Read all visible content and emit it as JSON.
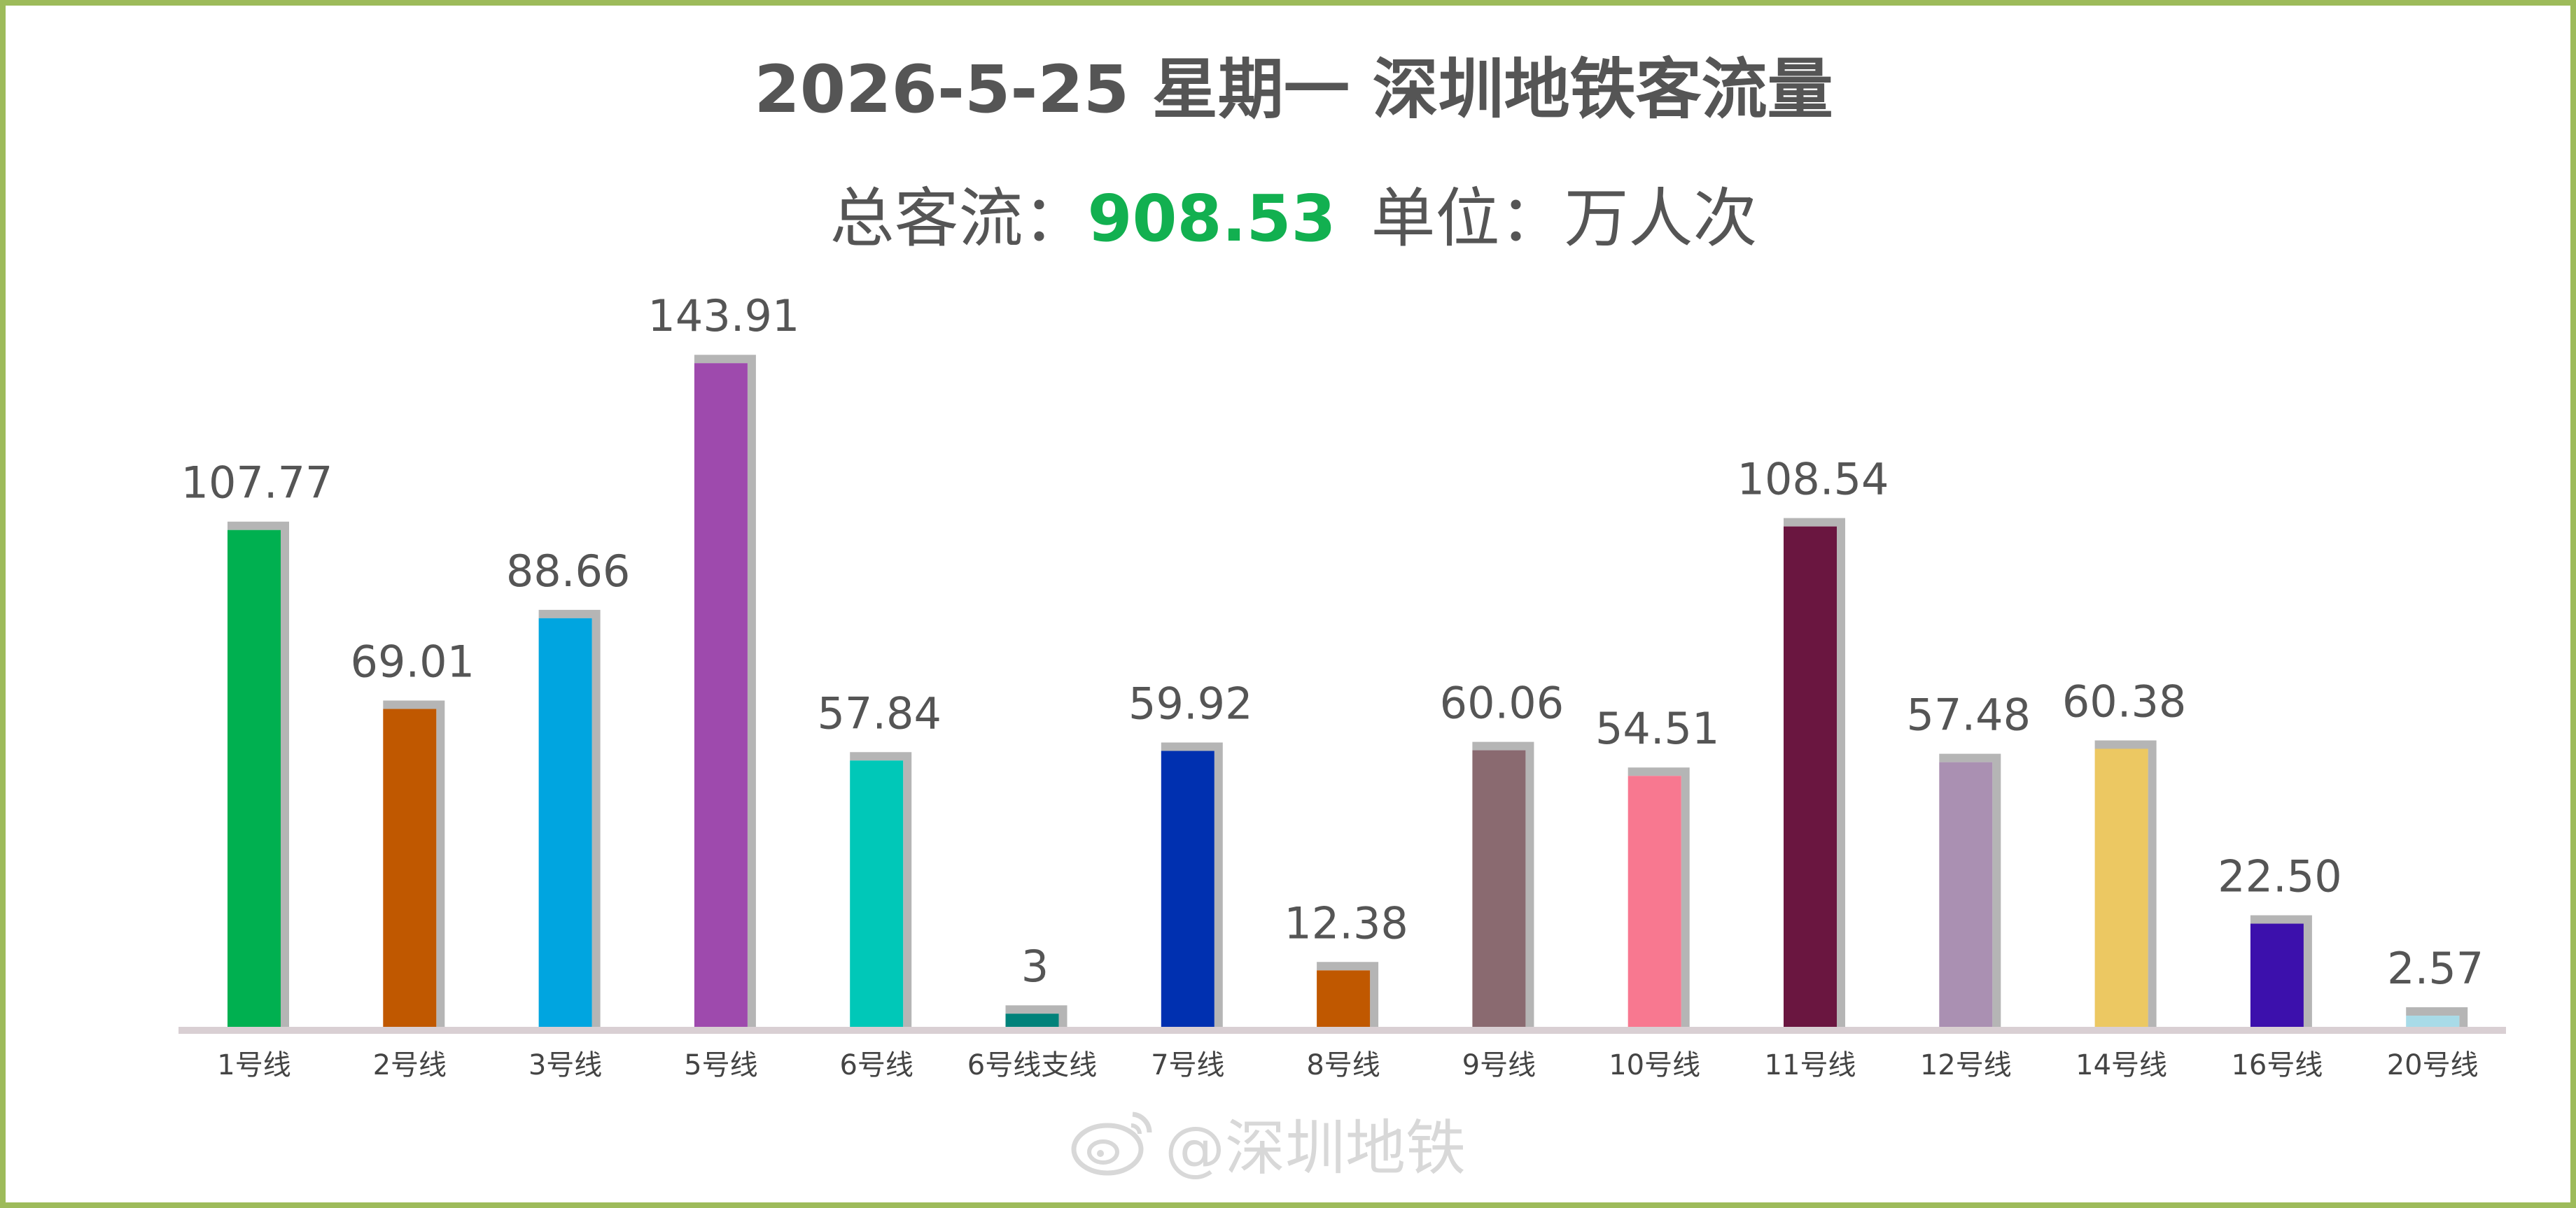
{
  "header": {
    "title": "2026-5-25 星期一  深圳地铁客流量",
    "total_label": "总客流：",
    "total_value": "908.53",
    "unit_label": "单位：万人次"
  },
  "watermark": {
    "text": "@深圳地铁"
  },
  "colors": {
    "frame": "#9dbb5a",
    "total_value": "#12b050",
    "shadow": "#b5b5b5",
    "axis": "#d9cfd3"
  },
  "chart_data": {
    "type": "bar",
    "title": "2026-5-25 星期一  深圳地铁客流量",
    "xlabel": "",
    "ylabel": "",
    "ylim": [
      0,
      150
    ],
    "grid": false,
    "categories": [
      "1号线",
      "2号线",
      "3号线",
      "5号线",
      "6号线",
      "6号线支线",
      "7号线",
      "8号线",
      "9号线",
      "10号线",
      "11号线",
      "12号线",
      "14号线",
      "16号线",
      "20号线"
    ],
    "values": [
      107.77,
      69.01,
      88.66,
      143.91,
      57.84,
      3,
      59.92,
      12.38,
      60.06,
      54.51,
      108.54,
      57.48,
      60.38,
      22.5,
      2.57
    ],
    "value_labels": [
      "107.77",
      "69.01",
      "88.66",
      "143.91",
      "57.84",
      "3",
      "59.92",
      "12.38",
      "60.06",
      "54.51",
      "108.54",
      "57.48",
      "60.38",
      "22.50",
      "2.57"
    ],
    "colors": [
      "#00b050",
      "#c05800",
      "#00a5e0",
      "#9e4aad",
      "#00c8b8",
      "#00827a",
      "#0030b0",
      "#c05800",
      "#8a6a70",
      "#f87890",
      "#6a1640",
      "#aa90b2",
      "#ecc862",
      "#3c10ac",
      "#a8dbe8"
    ]
  }
}
